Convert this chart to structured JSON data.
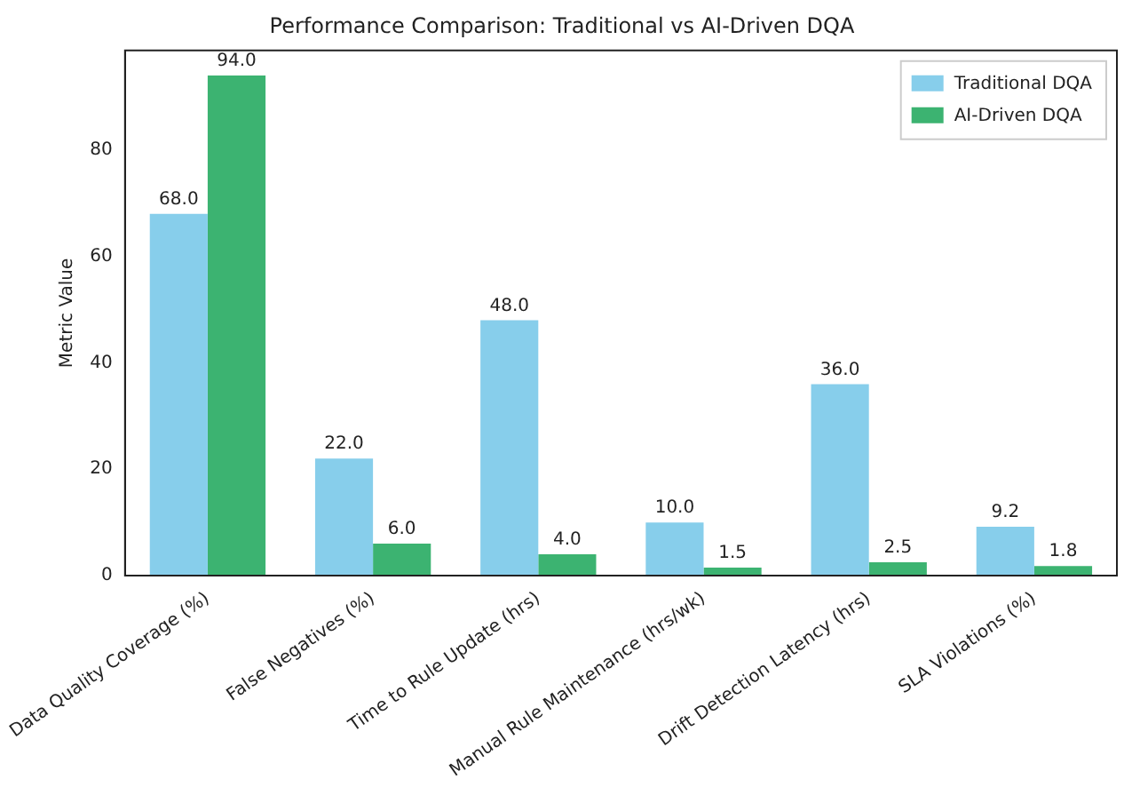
{
  "chart_data": {
    "type": "bar",
    "title": "Performance Comparison: Traditional vs AI-Driven DQA",
    "ylabel": "Metric Value",
    "categories": [
      "Data Quality Coverage (%)",
      "False Negatives (%)",
      "Time to Rule Update (hrs)",
      "Manual Rule Maintenance (hrs/wk)",
      "Drift Detection Latency (hrs)",
      "SLA Violations (%)"
    ],
    "series": [
      {
        "name": "Traditional DQA",
        "color": "#87ceeb",
        "values": [
          68,
          22,
          48,
          10,
          36,
          9.2
        ],
        "value_labels": [
          "68.0",
          "22.0",
          "48.0",
          "10.0",
          "36.0",
          "9.2"
        ]
      },
      {
        "name": "AI-Driven DQA",
        "color": "#3cb371",
        "values": [
          94,
          6,
          4,
          1.5,
          2.5,
          1.8
        ],
        "value_labels": [
          "94.0",
          "6.0",
          "4.0",
          "1.5",
          "2.5",
          "1.8"
        ]
      }
    ],
    "ylim": [
      0,
      98.7
    ],
    "yticks": [
      0,
      20,
      40,
      60,
      80
    ],
    "grid": false,
    "legend": "top right"
  }
}
